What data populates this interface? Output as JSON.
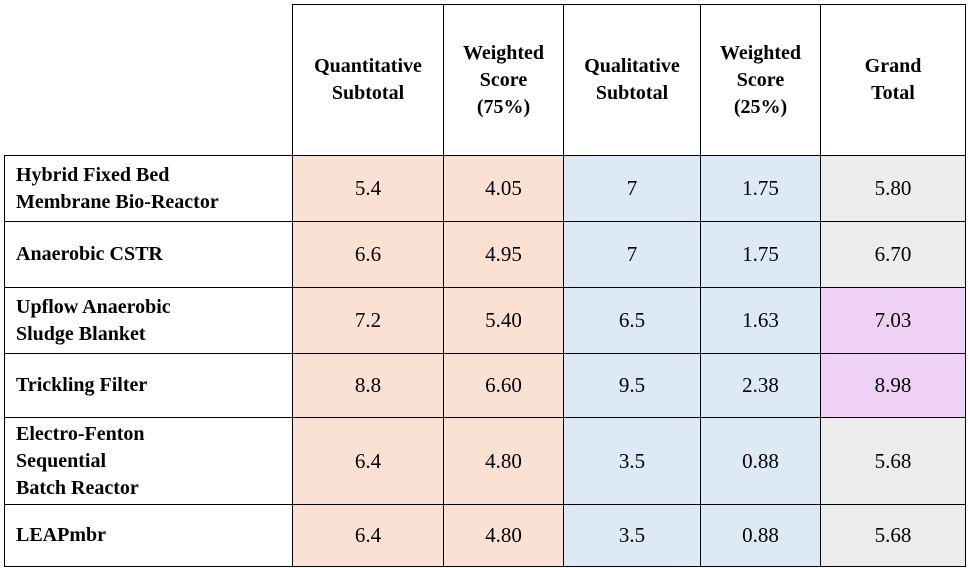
{
  "columns": [
    "",
    "Quantitative\nSubtotal",
    "Weighted\nScore\n(75%)",
    "Qualitative\nSubtotal",
    "Weighted\nScore\n(25%)",
    "Grand\nTotal"
  ],
  "rows": [
    {
      "name": "Hybrid Fixed Bed\nMembrane Bio-Reactor",
      "quant_subtotal": "5.4",
      "weighted_75": "4.05",
      "qual_subtotal": "7",
      "weighted_25": "1.75",
      "grand_total": "5.80",
      "highlight": false
    },
    {
      "name": "Anaerobic CSTR",
      "quant_subtotal": "6.6",
      "weighted_75": "4.95",
      "qual_subtotal": "7",
      "weighted_25": "1.75",
      "grand_total": "6.70",
      "highlight": false
    },
    {
      "name": "Upflow Anaerobic\nSludge Blanket",
      "quant_subtotal": "7.2",
      "weighted_75": "5.40",
      "qual_subtotal": "6.5",
      "weighted_25": "1.63",
      "grand_total": "7.03",
      "highlight": true
    },
    {
      "name": "Trickling Filter",
      "quant_subtotal": "8.8",
      "weighted_75": "6.60",
      "qual_subtotal": "9.5",
      "weighted_25": "2.38",
      "grand_total": "8.98",
      "highlight": true
    },
    {
      "name": "Electro-Fenton\nSequential\nBatch Reactor",
      "quant_subtotal": "6.4",
      "weighted_75": "4.80",
      "qual_subtotal": "3.5",
      "weighted_25": "0.88",
      "grand_total": "5.68",
      "highlight": false
    },
    {
      "name": "LEAPmbr",
      "quant_subtotal": "6.4",
      "weighted_75": "4.80",
      "qual_subtotal": "3.5",
      "weighted_25": "0.88",
      "grand_total": "5.68",
      "highlight": false
    }
  ],
  "colors": {
    "quantitative_fill": "#fbe1d4",
    "qualitative_fill": "#dde9f4",
    "grand_total_fill": "#ececec",
    "highlight_fill": "#efd1f5"
  }
}
